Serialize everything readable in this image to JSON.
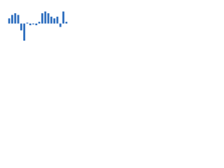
{
  "chart_data": {
    "type": "bar",
    "categories": [
      null,
      null,
      null,
      null,
      null,
      null,
      null,
      null,
      null,
      null,
      null,
      null,
      null,
      null,
      null,
      null,
      null,
      null,
      null,
      null
    ],
    "values": [
      3,
      5,
      6,
      5,
      -4,
      -10,
      0.5,
      -1,
      -0.5,
      -1,
      1,
      6,
      7,
      6,
      4,
      3,
      4,
      -2,
      7,
      1
    ],
    "color": "#2f6fbf",
    "ylim": [
      -12,
      8
    ]
  }
}
